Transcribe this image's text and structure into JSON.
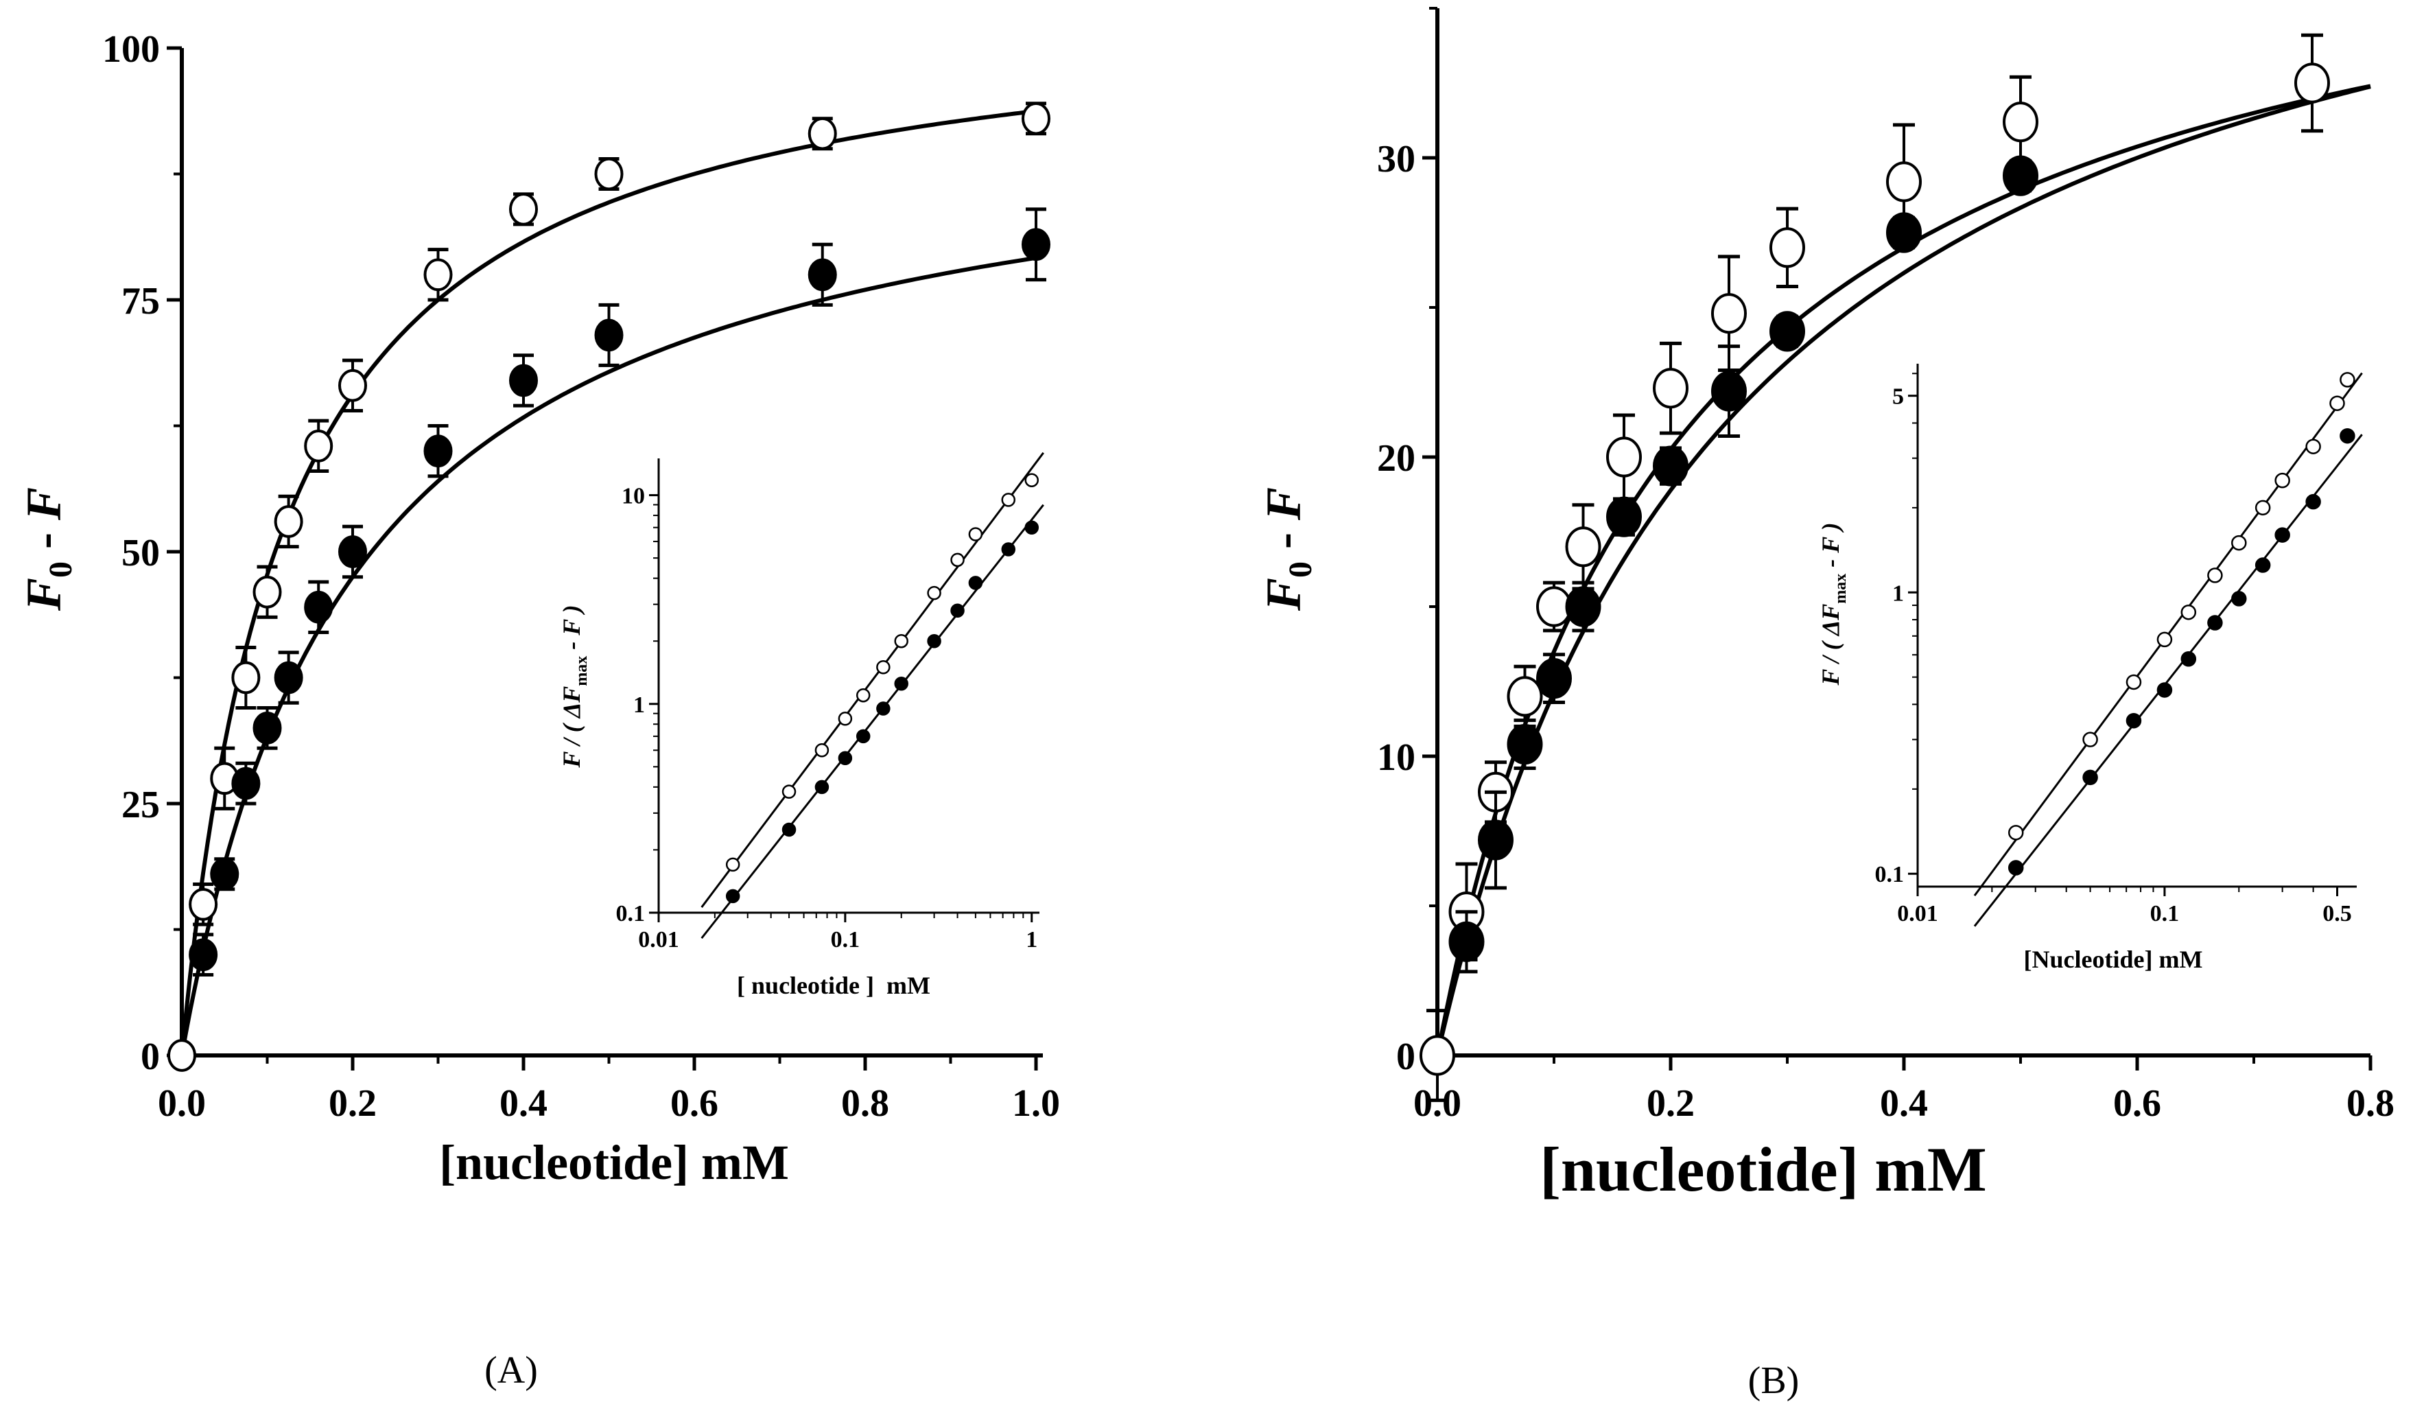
{
  "panels": [
    {
      "label": "(A)",
      "chart_data": {
        "type": "scatter",
        "xlabel": "[nucleotide] mM",
        "ylabel": "F0 - F",
        "xlim": [
          0,
          1.0
        ],
        "ylim": [
          0,
          100
        ],
        "xticks": [
          0.0,
          0.2,
          0.4,
          0.6,
          0.8,
          1.0
        ],
        "xtick_labels": [
          "0.0",
          "0.2",
          "0.4",
          "0.6",
          "0.8",
          "1.0"
        ],
        "yticks": [
          0,
          25,
          50,
          75,
          100
        ],
        "ytick_labels": [
          "0",
          "25",
          "50",
          "75",
          "100"
        ],
        "series": [
          {
            "name": "open",
            "marker": "open-circle",
            "x": [
              0,
              0.025,
              0.05,
              0.075,
              0.1,
              0.125,
              0.16,
              0.2,
              0.3,
              0.4,
              0.5,
              0.75,
              1.0
            ],
            "y": [
              0,
              15,
              27.5,
              37.5,
              46,
              53,
              60.5,
              66.5,
              77.5,
              84,
              87.5,
              91.5,
              93
            ],
            "err": [
              0,
              2,
              3,
              3,
              2.5,
              2.5,
              2.5,
              2.5,
              2.5,
              1.5,
              1.5,
              1.5,
              1.5
            ],
            "fit": {
              "vmax": 105,
              "k": 0.12
            }
          },
          {
            "name": "filled",
            "marker": "filled-circle",
            "x": [
              0.025,
              0.05,
              0.075,
              0.1,
              0.125,
              0.16,
              0.2,
              0.3,
              0.4,
              0.5,
              0.75,
              1.0
            ],
            "y": [
              10,
              18,
              27,
              32.5,
              37.5,
              44.5,
              50,
              60,
              67,
              71.5,
              77.5,
              80.5
            ],
            "err": [
              2,
              1.5,
              2,
              2,
              2.5,
              2.5,
              2.5,
              2.5,
              2.5,
              3,
              3,
              3.5
            ],
            "fit": {
              "vmax": 95,
              "k": 0.2
            }
          }
        ]
      },
      "inset": {
        "type": "scatter",
        "scale": "log-log",
        "xlabel": "[ nucleotide ]  mM",
        "ylabel": "F / ( ΔFmax - F )",
        "xlim": [
          0.01,
          1.1
        ],
        "ylim": [
          0.1,
          15
        ],
        "xtick_labels": [
          "0.01",
          "0.1",
          "1"
        ],
        "ytick_labels": [
          "0.1",
          "1",
          "10"
        ],
        "series": [
          {
            "name": "open",
            "marker": "open-circle",
            "x": [
              0.025,
              0.05,
              0.075,
              0.1,
              0.125,
              0.16,
              0.2,
              0.3,
              0.4,
              0.5,
              0.75,
              1.0
            ],
            "y": [
              0.17,
              0.38,
              0.6,
              0.85,
              1.1,
              1.5,
              2.0,
              3.4,
              4.9,
              6.5,
              9.5,
              11.8
            ]
          },
          {
            "name": "filled",
            "marker": "filled-circle",
            "x": [
              0.025,
              0.05,
              0.075,
              0.1,
              0.125,
              0.16,
              0.2,
              0.3,
              0.4,
              0.5,
              0.75,
              1.0
            ],
            "y": [
              0.12,
              0.25,
              0.4,
              0.55,
              0.7,
              0.95,
              1.25,
              2.0,
              2.8,
              3.8,
              5.5,
              7.0
            ]
          }
        ]
      }
    },
    {
      "label": "(B)",
      "chart_data": {
        "type": "scatter",
        "xlabel": "[nucleotide] mM",
        "ylabel": "F0 - F",
        "xlim": [
          0,
          0.8
        ],
        "ylim": [
          0,
          35
        ],
        "xticks": [
          0.0,
          0.2,
          0.4,
          0.6,
          0.8
        ],
        "xtick_labels": [
          "0.0",
          "0.2",
          "0.4",
          "0.6",
          "0.8"
        ],
        "yticks": [
          0,
          10,
          20,
          30
        ],
        "ytick_labels": [
          "0",
          "10",
          "20",
          "30"
        ],
        "series": [
          {
            "name": "open",
            "marker": "open-circle",
            "x": [
              0,
              0.025,
              0.05,
              0.075,
              0.1,
              0.125,
              0.16,
              0.2,
              0.25,
              0.3,
              0.4,
              0.5,
              0.75
            ],
            "y": [
              0,
              4.8,
              8.8,
              12,
              15,
              17,
              20,
              22.3,
              24.8,
              27,
              29.2,
              31.2,
              32.5
            ],
            "err": [
              1.5,
              1.6,
              1,
              1,
              0.8,
              1.4,
              1.4,
              1.5,
              1.9,
              1.3,
              1.9,
              1.5,
              1.6
            ],
            "fit": {
              "vmax": 40.5,
              "k": 0.2
            }
          },
          {
            "name": "filled",
            "marker": "filled-circle",
            "x": [
              0.025,
              0.05,
              0.075,
              0.1,
              0.125,
              0.16,
              0.2,
              0.25,
              0.3,
              0.4,
              0.5
            ],
            "y": [
              3.8,
              7.2,
              10.4,
              12.6,
              15,
              18,
              19.7,
              22.2,
              24.2,
              27.5,
              29.4
            ],
            "err": [
              1,
              1.6,
              0.8,
              0.8,
              0.8,
              0.6,
              0.6,
              1.5,
              0.5,
              0.5,
              0.5
            ],
            "fit": {
              "vmax": 42.5,
              "k": 0.25
            }
          }
        ]
      },
      "inset": {
        "type": "scatter",
        "scale": "log-log",
        "xlabel": "[Nucleotide] mM",
        "ylabel": "F / ( ΔFmax - F )",
        "xlim": [
          0.01,
          0.6
        ],
        "ylim": [
          0.09,
          6.5
        ],
        "xtick_labels": [
          "0.01",
          "0.1",
          "0.5"
        ],
        "ytick_labels": [
          "0.1",
          "1",
          "5"
        ],
        "series": [
          {
            "name": "open",
            "marker": "open-circle",
            "x": [
              0.025,
              0.05,
              0.075,
              0.1,
              0.125,
              0.16,
              0.2,
              0.25,
              0.3,
              0.4,
              0.5,
              0.55
            ],
            "y": [
              0.14,
              0.3,
              0.48,
              0.68,
              0.85,
              1.15,
              1.5,
              2.0,
              2.5,
              3.3,
              4.7,
              5.7
            ]
          },
          {
            "name": "filled",
            "marker": "filled-circle",
            "x": [
              0.025,
              0.05,
              0.075,
              0.1,
              0.125,
              0.16,
              0.2,
              0.25,
              0.3,
              0.4,
              0.55
            ],
            "y": [
              0.105,
              0.22,
              0.35,
              0.45,
              0.58,
              0.78,
              0.95,
              1.25,
              1.6,
              2.1,
              3.6
            ]
          }
        ]
      }
    }
  ]
}
